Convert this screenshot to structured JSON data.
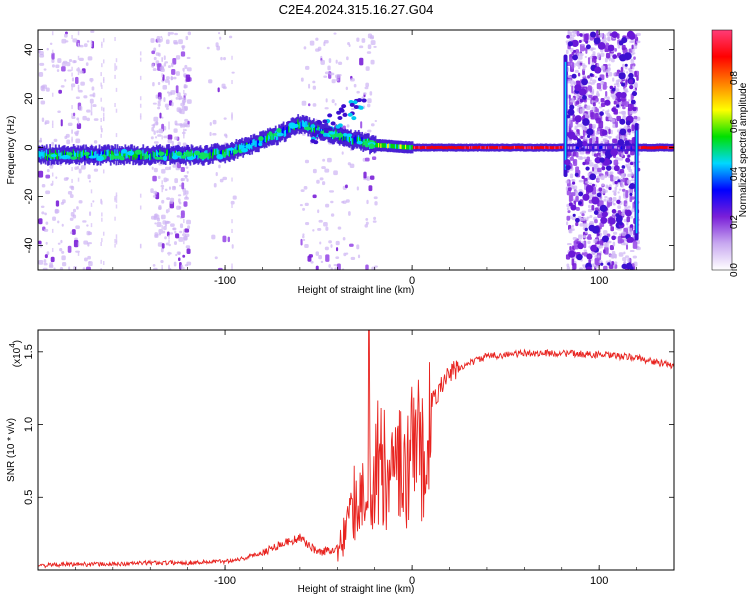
{
  "figure_title": "C2E4.2024.315.16.27.G04",
  "chart_data": [
    {
      "type": "heatmap",
      "xlabel": "Height of straight line (km)",
      "ylabel": "Frequency (Hz)",
      "xlim": [
        -200,
        140
      ],
      "ylim": [
        -50,
        48
      ],
      "xticks": [
        -100,
        0,
        100
      ],
      "yticks": [
        -40,
        -20,
        0,
        20,
        40
      ],
      "colorbar": {
        "label": "Normalized spectral amplitude",
        "range": [
          0.0,
          1.0
        ],
        "ticks": [
          0.0,
          0.2,
          0.4,
          0.6,
          0.8
        ],
        "colormap": [
          "#ffffff",
          "#c8a8f0",
          "#7a1fd8",
          "#0000ff",
          "#00d8ff",
          "#00e000",
          "#ffff00",
          "#ff8000",
          "#ff0000",
          "#ff3c78"
        ]
      },
      "ridge": [
        {
          "x": -200,
          "f": -3
        },
        {
          "x": -180,
          "f": -3
        },
        {
          "x": -150,
          "f": -3
        },
        {
          "x": -130,
          "f": -3
        },
        {
          "x": -110,
          "f": -3
        },
        {
          "x": -100,
          "f": -2
        },
        {
          "x": -90,
          "f": 0
        },
        {
          "x": -80,
          "f": 3
        },
        {
          "x": -70,
          "f": 6
        },
        {
          "x": -60,
          "f": 10
        },
        {
          "x": -50,
          "f": 7
        },
        {
          "x": -40,
          "f": 5
        },
        {
          "x": -30,
          "f": 3
        },
        {
          "x": -20,
          "f": 1
        },
        {
          "x": 0,
          "f": 0
        },
        {
          "x": 40,
          "f": 0
        },
        {
          "x": 78,
          "f": 0
        },
        {
          "x": 120,
          "f": 0
        },
        {
          "x": 140,
          "f": 0
        }
      ]
    },
    {
      "type": "line",
      "xlabel": "Height of straight line (km)",
      "ylabel": "SNR (10 * v/v)",
      "y_multiplier": "(x10",
      "y_multiplier_exp": "4",
      "xlim": [
        -200,
        140
      ],
      "ylim": [
        0,
        1.65
      ],
      "xticks": [
        -100,
        0,
        100
      ],
      "yticks": [
        0.5,
        1.0,
        1.5
      ],
      "ytick_labels": [
        "0.5",
        "1.0",
        "1.5"
      ],
      "color": "#e8231f",
      "series": [
        {
          "x": [
            -200,
            -180,
            -160,
            -140,
            -120,
            -100,
            -90,
            -80,
            -70,
            -60,
            -50,
            -40,
            -35,
            -30,
            -25,
            -20,
            -15,
            -10,
            -5,
            0,
            5,
            10,
            15,
            20,
            30,
            40,
            60,
            80,
            100,
            120,
            140
          ],
          "y": [
            0.03,
            0.04,
            0.04,
            0.05,
            0.05,
            0.06,
            0.08,
            0.12,
            0.18,
            0.22,
            0.12,
            0.15,
            0.35,
            0.6,
            0.8,
            0.95,
            0.85,
            0.9,
            0.9,
            1.0,
            1.05,
            1.15,
            1.25,
            1.35,
            1.42,
            1.47,
            1.49,
            1.49,
            1.48,
            1.46,
            1.4
          ]
        }
      ]
    }
  ]
}
